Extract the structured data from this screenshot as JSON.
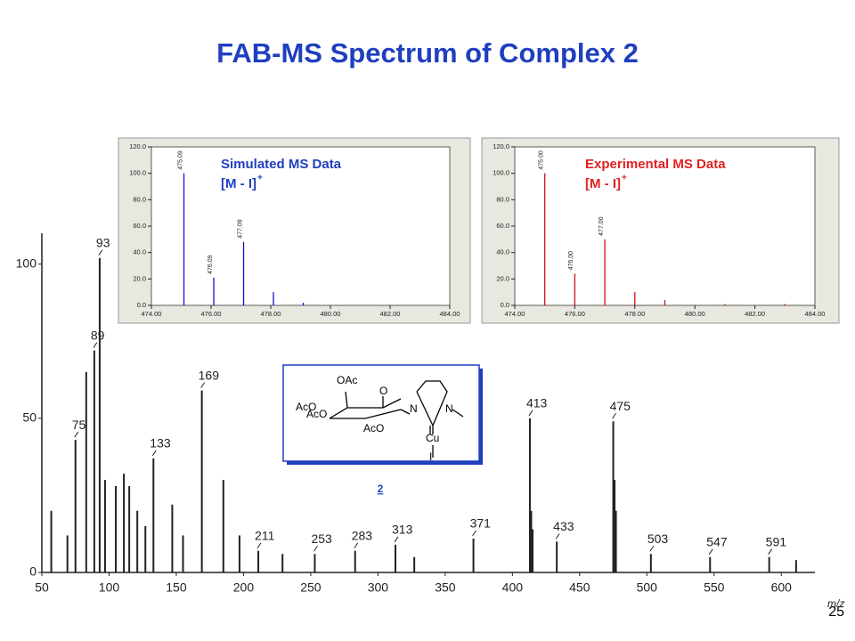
{
  "slide": {
    "title": "FAB-MS Spectrum of Complex 2",
    "page": 25
  },
  "structure": {
    "labels": [
      "OAc",
      "O",
      "AcO",
      "AcO",
      "AcO",
      "N",
      "N",
      "Cu",
      "I"
    ],
    "compound": "2"
  },
  "chart_data": [
    {
      "type": "stick",
      "x_label": "m/z",
      "color": "#222222",
      "x": [
        57,
        69,
        75,
        83,
        89,
        93,
        97,
        105,
        111,
        115,
        121,
        127,
        133,
        147,
        155,
        169,
        185,
        197,
        211,
        229,
        253,
        283,
        313,
        327,
        371,
        413,
        414,
        415,
        433,
        475,
        476,
        477,
        503,
        547,
        591,
        611
      ],
      "values": [
        20,
        12,
        43,
        65,
        72,
        102,
        30,
        28,
        32,
        28,
        20,
        15,
        37,
        22,
        12,
        59,
        30,
        12,
        7,
        6,
        6,
        7,
        9,
        5,
        11,
        50,
        20,
        14,
        10,
        49,
        30,
        20,
        6,
        5,
        5,
        4
      ],
      "peak_labels": [
        null,
        null,
        "75",
        null,
        "89",
        "93",
        null,
        null,
        null,
        null,
        null,
        null,
        "133",
        null,
        null,
        "169",
        null,
        null,
        "211",
        null,
        "253",
        "283",
        "313",
        null,
        "371",
        "413",
        null,
        null,
        "433",
        "475",
        null,
        null,
        "503",
        "547",
        "591",
        null
      ],
      "xlim": [
        50,
        625
      ],
      "xticks": [
        50,
        100,
        150,
        200,
        250,
        300,
        350,
        400,
        450,
        500,
        550,
        600
      ],
      "ylim": [
        0,
        110
      ],
      "yticks": [
        0,
        50,
        100
      ]
    },
    {
      "type": "stick",
      "title": "Simulated MS Data",
      "subtitle": "[M - I]",
      "subtitle_sup": "+",
      "color": "#1010d0",
      "text_color": "#1f3fbf",
      "x": [
        475.09,
        476.09,
        477.09,
        478.09,
        479.09
      ],
      "values": [
        100,
        21,
        48,
        10,
        2
      ],
      "peak_labels": [
        "475.09",
        "476.09",
        "477.09",
        null,
        null
      ],
      "xlim": [
        474,
        484
      ],
      "xticks": [
        {
          "value": 474,
          "label": "474.00"
        },
        {
          "value": 476,
          "label": "476.00"
        },
        {
          "value": 478,
          "label": "478.00"
        },
        {
          "value": 480,
          "label": "480.00"
        },
        {
          "value": 482,
          "label": "482.00"
        },
        {
          "value": 484,
          "label": "484.00"
        }
      ],
      "ylim": [
        0,
        120
      ],
      "yticks": [
        {
          "value": 0,
          "label": "0.0"
        },
        {
          "value": 20,
          "label": "20.0"
        },
        {
          "value": 40,
          "label": "40.0"
        },
        {
          "value": 60,
          "label": "60.0"
        },
        {
          "value": 80,
          "label": "80.0"
        },
        {
          "value": 100,
          "label": "100.0"
        },
        {
          "value": 120,
          "label": "120.0"
        }
      ]
    },
    {
      "type": "stick",
      "title": "Experimental MS Data",
      "subtitle": "[M - I]",
      "subtitle_sup": "+",
      "color": "#d01010",
      "text_color": "#e02020",
      "x": [
        475,
        476,
        477,
        478,
        479,
        481,
        483
      ],
      "values": [
        100,
        24,
        50,
        10,
        4,
        1,
        1
      ],
      "peak_labels": [
        "475.00",
        "476.00",
        "477.00",
        null,
        null,
        null,
        null
      ],
      "xlim": [
        474,
        484
      ],
      "xticks": [
        {
          "value": 474,
          "label": "474.00"
        },
        {
          "value": 476,
          "label": "476.00"
        },
        {
          "value": 478,
          "label": "478.00"
        },
        {
          "value": 480,
          "label": "480.00"
        },
        {
          "value": 482,
          "label": "482.00"
        },
        {
          "value": 484,
          "label": "484.00"
        }
      ],
      "ylim": [
        0,
        120
      ],
      "yticks": [
        {
          "value": 0,
          "label": "0.0"
        },
        {
          "value": 20,
          "label": "20.0"
        },
        {
          "value": 40,
          "label": "40.0"
        },
        {
          "value": 60,
          "label": "60.0"
        },
        {
          "value": 80,
          "label": "80.0"
        },
        {
          "value": 100,
          "label": "100.0"
        },
        {
          "value": 120,
          "label": "120.0"
        }
      ]
    }
  ]
}
